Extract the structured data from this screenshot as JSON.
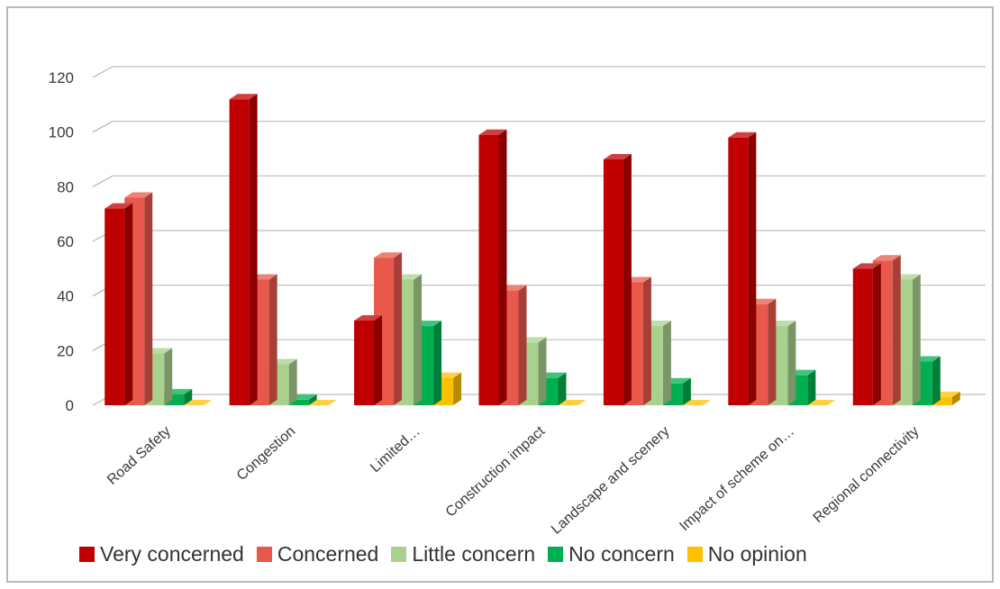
{
  "chart_data": {
    "type": "bar",
    "categories": [
      "Road Safety",
      "Congestion",
      "Limited…",
      "Construction impact",
      "Landscape and scenery",
      "Impact of scheme on…",
      "Regional connectivity"
    ],
    "series": [
      {
        "name": "Very concerned",
        "color": "#C00000",
        "values": [
          72,
          112,
          31,
          99,
          90,
          98,
          50
        ]
      },
      {
        "name": "Concerned",
        "color": "#E8584B",
        "values": [
          76,
          46,
          54,
          42,
          45,
          37,
          53
        ]
      },
      {
        "name": "Little concern",
        "color": "#A9D18E",
        "values": [
          19,
          15,
          46,
          23,
          29,
          29,
          46
        ]
      },
      {
        "name": "No concern",
        "color": "#00B050",
        "values": [
          4,
          2,
          29,
          10,
          8,
          11,
          16
        ]
      },
      {
        "name": "No opinion",
        "color": "#FFC000",
        "values": [
          0,
          0,
          10,
          0,
          0,
          0,
          3
        ]
      }
    ],
    "yticks": [
      0,
      20,
      40,
      60,
      80,
      100,
      120
    ],
    "ylim": [
      0,
      120
    ],
    "grid": true,
    "legend_position": "bottom",
    "title": "",
    "xlabel": "",
    "ylabel": ""
  }
}
